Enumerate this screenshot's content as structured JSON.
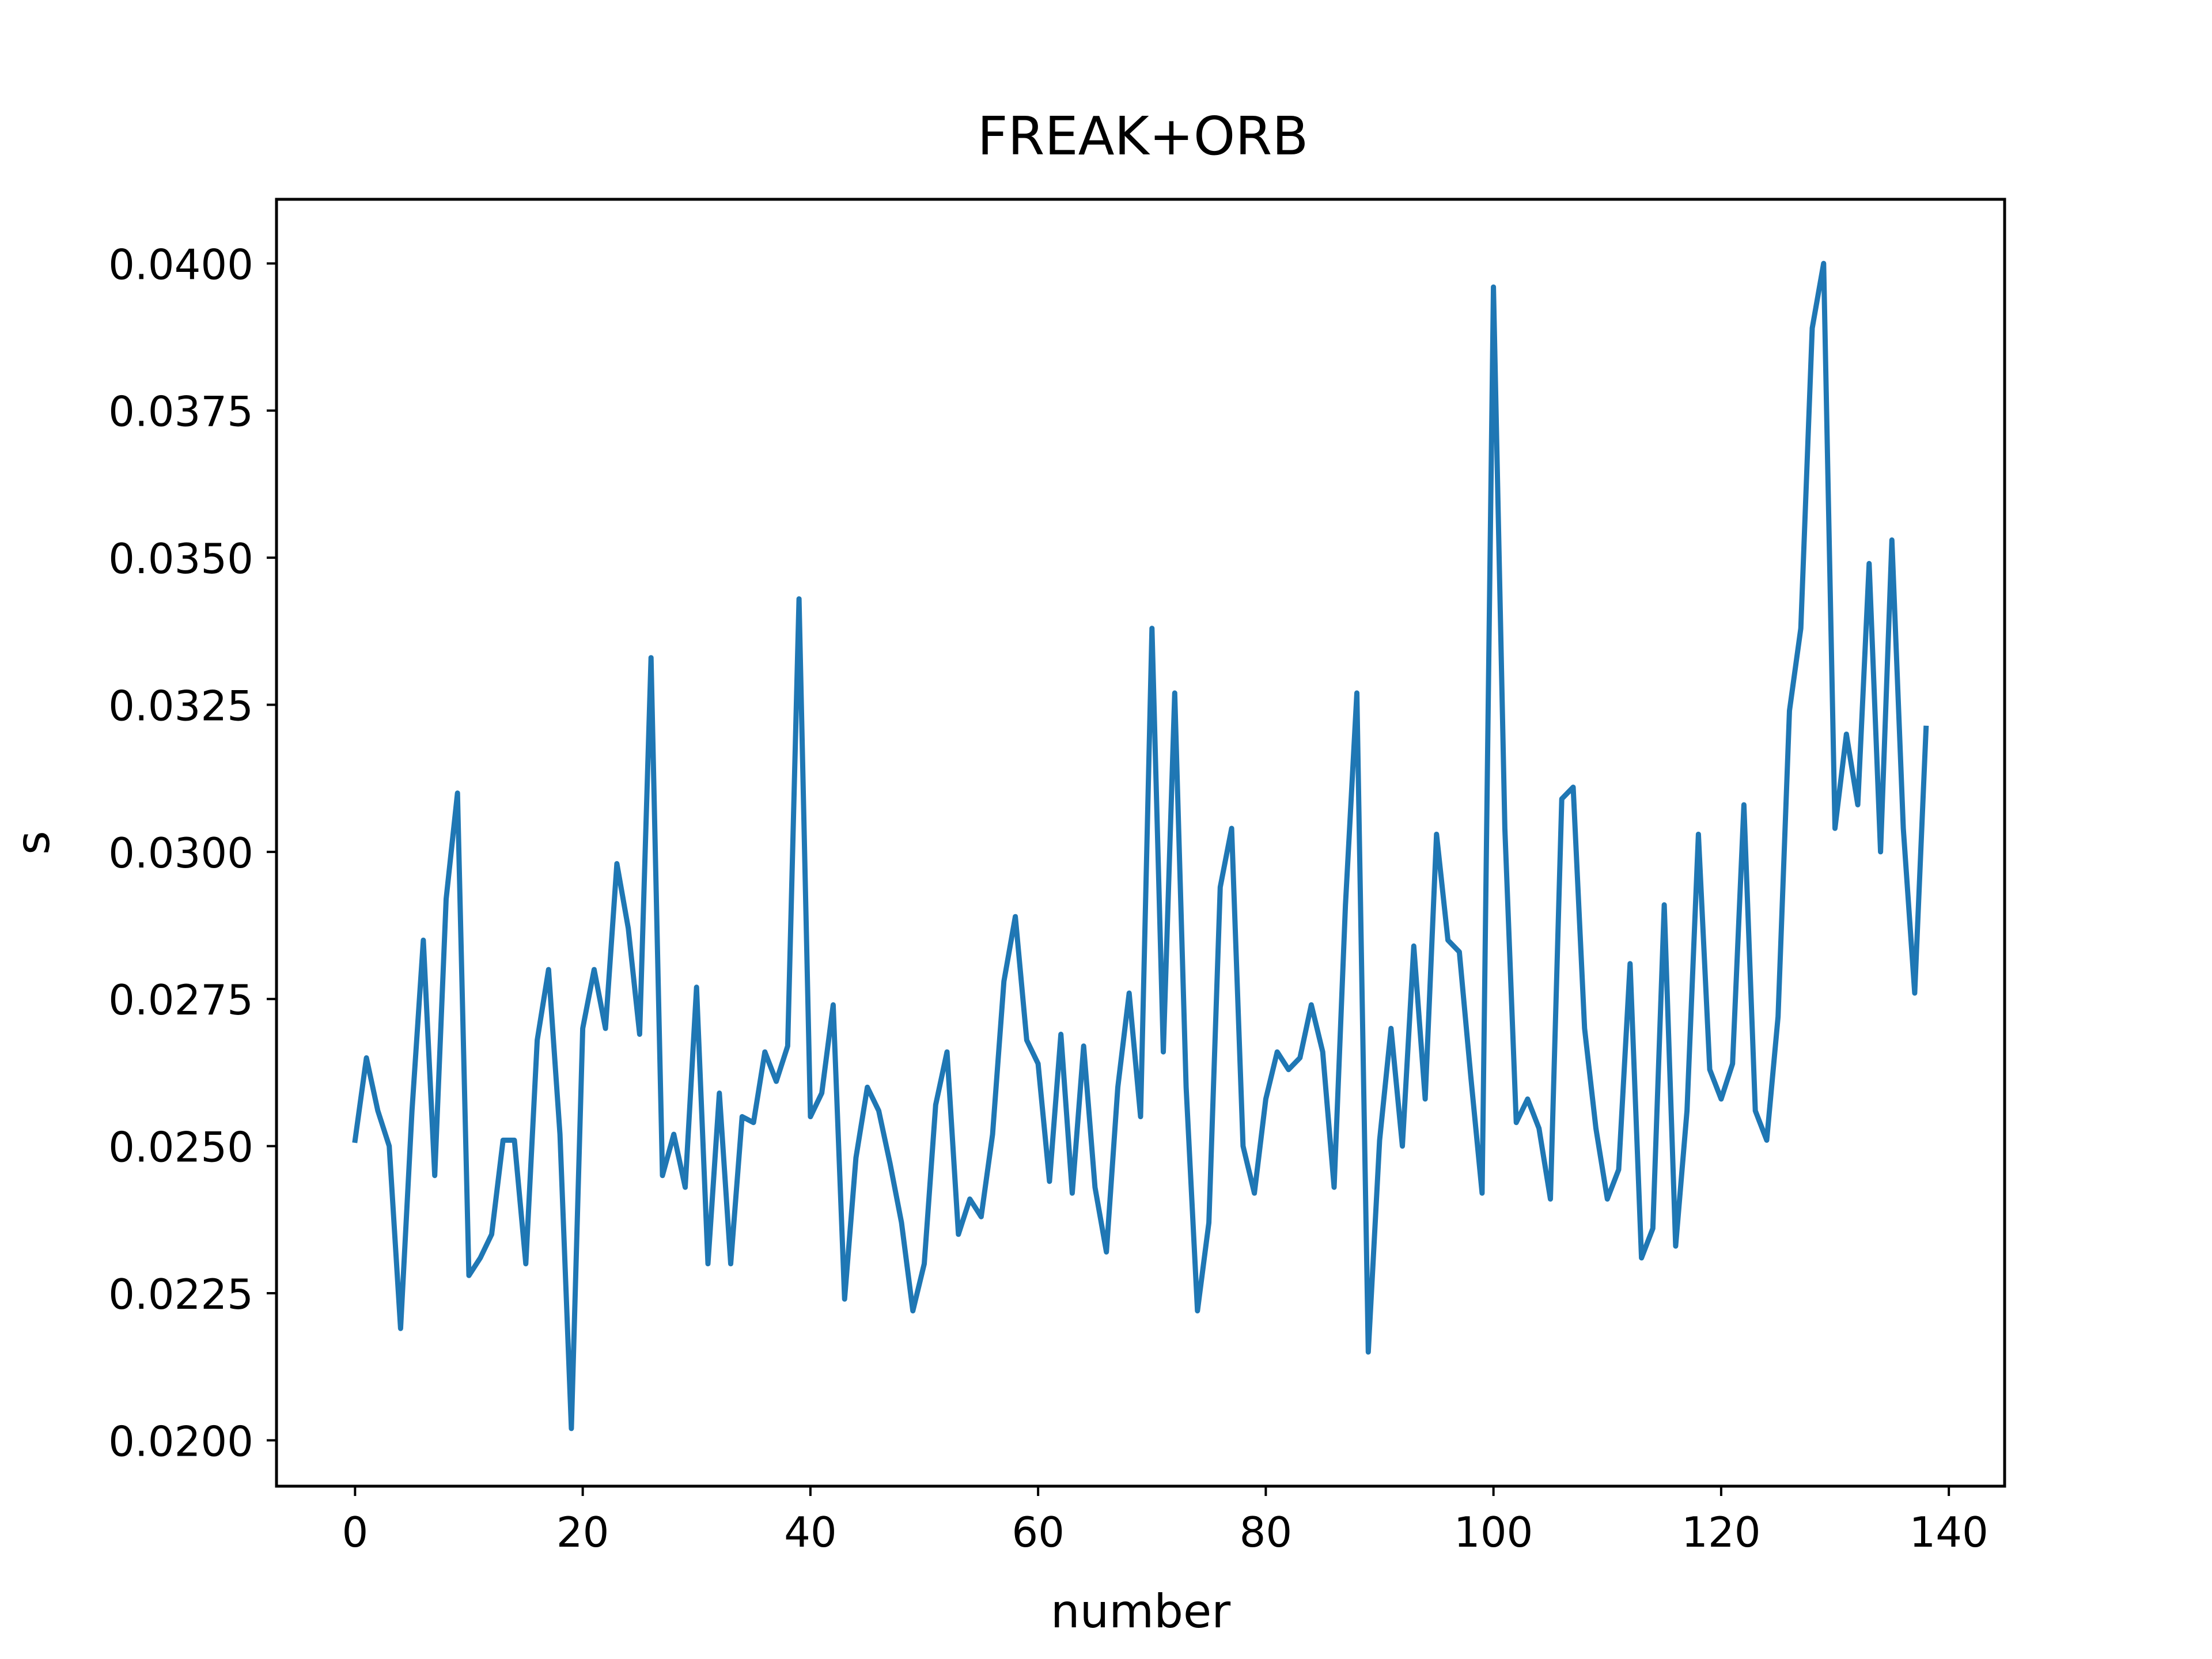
{
  "chart_data": {
    "type": "line",
    "title": "FREAK+ORB",
    "xlabel": "number",
    "ylabel": "s",
    "xlim": [
      -6.9,
      144.9
    ],
    "ylim": [
      0.01922,
      0.04109
    ],
    "xticks": [
      0,
      20,
      40,
      60,
      80,
      100,
      120,
      140
    ],
    "yticks": [
      0.02,
      0.0225,
      0.025,
      0.0275,
      0.03,
      0.0325,
      0.035,
      0.0375,
      0.04
    ],
    "xtick_labels": [
      "0",
      "20",
      "40",
      "60",
      "80",
      "100",
      "120",
      "140"
    ],
    "ytick_labels": [
      "0.0200",
      "0.0225",
      "0.0250",
      "0.0275",
      "0.0300",
      "0.0325",
      "0.0350",
      "0.0375",
      "0.0400"
    ],
    "grid": false,
    "series": [
      {
        "color": "#1f77b4",
        "x_start": 0,
        "values": [
          0.0251,
          0.0265,
          0.0256,
          0.025,
          0.0219,
          0.0256,
          0.0285,
          0.0245,
          0.0292,
          0.031,
          0.0228,
          0.0231,
          0.0235,
          0.0251,
          0.0251,
          0.023,
          0.0268,
          0.028,
          0.0252,
          0.0202,
          0.027,
          0.028,
          0.027,
          0.0298,
          0.0287,
          0.0269,
          0.0333,
          0.0245,
          0.0252,
          0.0243,
          0.0277,
          0.023,
          0.0259,
          0.023,
          0.0255,
          0.0254,
          0.0266,
          0.0261,
          0.0267,
          0.0343,
          0.0255,
          0.0259,
          0.0274,
          0.0224,
          0.0248,
          0.026,
          0.0256,
          0.0247,
          0.0237,
          0.0222,
          0.023,
          0.0257,
          0.0266,
          0.0235,
          0.0241,
          0.0238,
          0.0252,
          0.0278,
          0.0289,
          0.0268,
          0.0264,
          0.0244,
          0.0269,
          0.0242,
          0.0267,
          0.0243,
          0.0232,
          0.026,
          0.0276,
          0.0255,
          0.0338,
          0.0266,
          0.0327,
          0.026,
          0.0222,
          0.0237,
          0.0294,
          0.0304,
          0.025,
          0.0242,
          0.0258,
          0.0266,
          0.0263,
          0.0265,
          0.0274,
          0.0266,
          0.0243,
          0.0291,
          0.0327,
          0.0215,
          0.0251,
          0.027,
          0.025,
          0.0284,
          0.0258,
          0.0303,
          0.0285,
          0.0283,
          0.0262,
          0.0242,
          0.0396,
          0.0304,
          0.0254,
          0.0258,
          0.0253,
          0.0241,
          0.0309,
          0.0311,
          0.027,
          0.0253,
          0.0241,
          0.0246,
          0.0281,
          0.0231,
          0.0236,
          0.0291,
          0.0233,
          0.0256,
          0.0303,
          0.0263,
          0.0258,
          0.0264,
          0.0308,
          0.0256,
          0.0251,
          0.0272,
          0.0324,
          0.0338,
          0.0389,
          0.04,
          0.0304,
          0.032,
          0.0308,
          0.0349,
          0.03,
          0.0353,
          0.0304,
          0.0276,
          0.0321
        ]
      }
    ]
  }
}
